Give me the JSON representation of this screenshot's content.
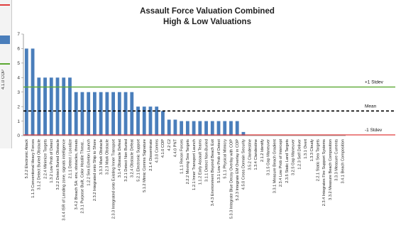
{
  "left_strip": {
    "label": "4.1.0 COP"
  },
  "chart_data": {
    "type": "bar",
    "title_lines": [
      "Assault Force Valuation Combined",
      "High & Low Valuations"
    ],
    "xlabel": "",
    "ylabel": "",
    "ylim": [
      0,
      7
    ],
    "yticks": [
      0,
      1,
      2,
      3,
      4,
      5,
      6,
      7
    ],
    "grid": false,
    "bar_color": "#4a7ebb",
    "categories": [
      "5.2.2 Electronic Attack",
      "1.1.3 Conventional Heavy Forces",
      "3.1.2 Detect Buried Obstacle",
      "2.2.4 Minimize Targets",
      "1.3.2 Low Prob of Detect",
      "3.2.2 Detect Buried Obstacle",
      "3.4.4 ISR of Landing zone, signals intelligence",
      "2.1.1 Detect / Localize",
      "3.4.2 Breach SA: env, obstacles, threats",
      "2.3.1 Purpose Built, Color Hostile Threat...",
      "1.2.2 Sea Echelon Launch",
      "2.3.2 Integrated onto Ship to Shore",
      "3.3.3 Mark Obstacle",
      "3.2.3 Mark Obstacle",
      "2.3.3 Integrated onto Existing Inner Transport",
      "3.1.4 Obstacle Defeat",
      "3.2.1 Detect Non Buried",
      "3.2.4 Obstacle Defeat",
      "5.2.1 Electronic Support",
      "5.1.2 Mimic Comms Signature",
      "2.1.4 Disseminate",
      "4.3.0 Comms",
      "4.1.0 COP",
      "4.2 C2",
      "4.4.0 PNT",
      "1.1.1 Recon Forces",
      "2.2.2 Moving Sea Targets",
      "1.2.1 Inner Transport Launch",
      "1.1.2 Early Assault Teams",
      "3.1.1 Detect Non-Buried",
      "3.4.3 Environment Beyond Beach Exit",
      "5.3.1 Low Prob of Detect",
      "5.1.1 Physical Mimicry",
      "5.3.3 Integrate Blue Decoy Overlay with COP",
      "5.2.3 Integrate EM Overlay in COP",
      "4.5.0 Cross Domain Security",
      "3.5.2 Clandestine",
      "1.3.4 Clandestine",
      "2.1.2 Identify",
      "3.1.5 Gap Maneuver",
      "3.3.1 Measure Beach Gradient",
      "2.3.4 Low Prob of Intercept",
      "2.3.5 Static Land Targets",
      "3.2.5 Gap Maneuver",
      "1.2.3 Self Deliver",
      "1.3.1 Overt",
      "1.3.3 Cloudy",
      "2.2.1 Static Sea Targets",
      "2.3.4 Integrates Fire Support Systems",
      "3.3.2 Measure Beach Composition",
      "3.3.3 Measure Currents",
      "3.4.1 Beach Composition"
    ],
    "values": [
      6,
      6,
      4,
      4,
      4,
      4,
      4,
      4,
      3,
      3,
      3,
      3,
      3,
      3,
      3,
      3,
      3,
      3,
      2,
      2,
      2,
      2,
      1.7,
      1.1,
      1.1,
      1,
      1,
      1,
      1,
      1,
      1,
      1,
      1,
      1,
      1,
      0.25,
      0,
      0,
      0,
      0,
      0,
      0,
      0,
      0,
      0,
      0,
      0,
      0,
      0,
      0,
      0,
      0
    ],
    "reference_lines": [
      {
        "label": "+1 Stdev",
        "value": 3.35,
        "color": "#5aa832",
        "style": "solid"
      },
      {
        "label": "Mean",
        "value": 1.7,
        "color": "#000000",
        "style": "dashed"
      },
      {
        "label": "-1 Stdev",
        "value": 0.05,
        "color": "#e03c3c",
        "style": "solid"
      }
    ]
  }
}
